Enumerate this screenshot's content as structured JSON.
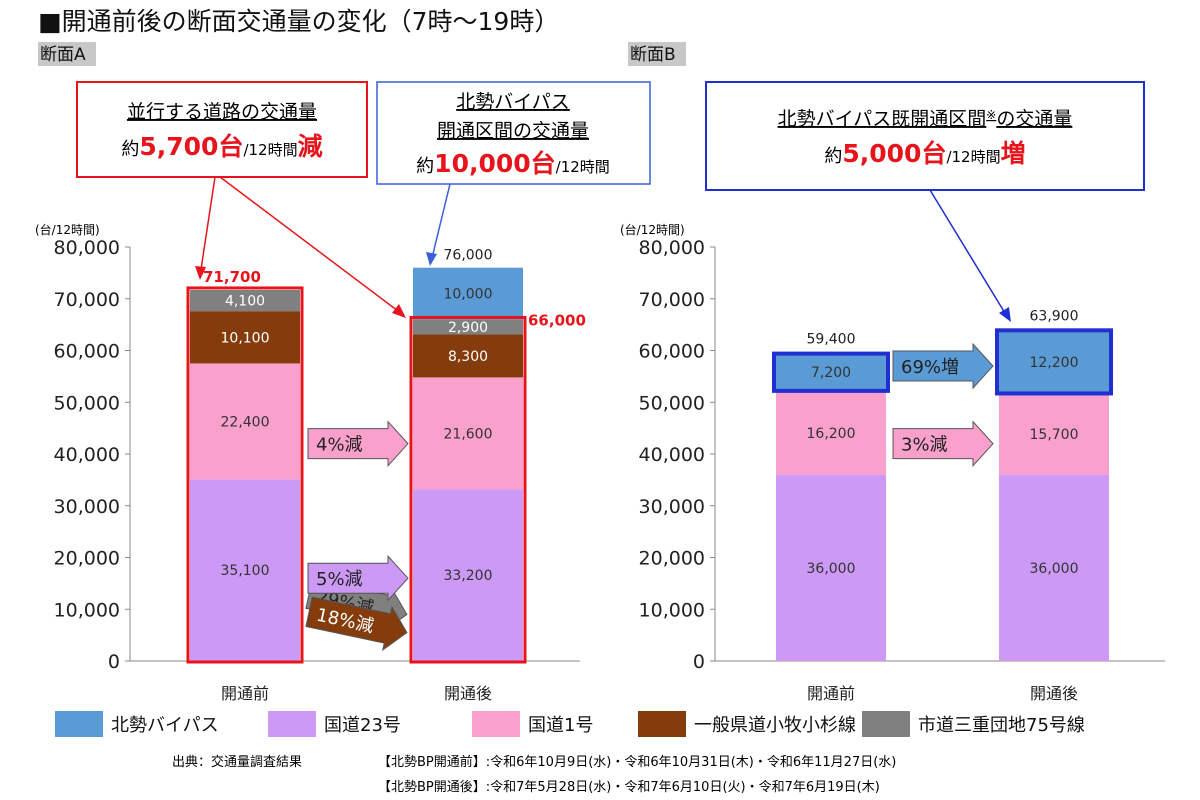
{
  "title": "■開通前後の断面交通量の変化（7時〜19時）",
  "colors": {
    "bypass": "#5b9bd5",
    "route23": "#cc99f5",
    "route1": "#f9a0cc",
    "pref_road": "#843c0c",
    "city_road": "#808080",
    "red": "#e8141b",
    "blue": "#1f2fd0"
  },
  "callouts": {
    "a_parallel": {
      "line1": "並行する道路の交通量",
      "prefix": "約",
      "value": "5,700台",
      "unit": "/12時間",
      "suffix": "減"
    },
    "a_bypass": {
      "line1": "北勢バイパス",
      "line2": "開通区間の交通量",
      "prefix": "約",
      "value": "10,000台",
      "unit": "/12時間"
    },
    "b_bypass": {
      "line1": "北勢バイパス既開通区間",
      "note": "※",
      "line1b": "の交通量",
      "prefix": "約",
      "value": "5,000台",
      "unit": "/12時間",
      "suffix": "増"
    }
  },
  "legend": [
    "北勢バイパス",
    "国道23号",
    "国道1号",
    "一般県道小牧小杉線",
    "市道三重団地75号線"
  ],
  "source": {
    "label": "出典：交通量調査結果",
    "before": "【北勢BP開通前】:令和6年10月9日(水)・令和6年10月31日(木)・令和6年11月27日(水)",
    "after": "【北勢BP開通後】:令和7年5月28日(水)・令和7年6月10日(火)・令和7年6月19日(木)"
  },
  "chart_data": [
    {
      "type": "bar",
      "stacked": true,
      "title": "断面A",
      "ylabel": "(台/12時間)",
      "ylim": [
        0,
        80000
      ],
      "yticks": [
        "0",
        "10,000",
        "20,000",
        "30,000",
        "40,000",
        "50,000",
        "60,000",
        "70,000",
        "80,000"
      ],
      "categories": [
        "開通前",
        "開通後"
      ],
      "series": [
        {
          "name": "国道23号",
          "key": "route23",
          "values": [
            35100,
            33200
          ],
          "labels": [
            "35,100",
            "33,200"
          ]
        },
        {
          "name": "国道1号",
          "key": "route1",
          "values": [
            22400,
            21600
          ],
          "labels": [
            "22,400",
            "21,600"
          ]
        },
        {
          "name": "一般県道小牧小杉線",
          "key": "pref_road",
          "values": [
            10100,
            8300
          ],
          "labels": [
            "10,100",
            "8,300"
          ]
        },
        {
          "name": "市道三重団地75号線",
          "key": "city_road",
          "values": [
            4100,
            2900
          ],
          "labels": [
            "4,100",
            "2,900"
          ]
        },
        {
          "name": "北勢バイパス",
          "key": "bypass",
          "values": [
            0,
            10000
          ],
          "labels": [
            "",
            "10,000"
          ]
        }
      ],
      "totals": [
        "71,700",
        "76,000"
      ],
      "parallel_total_after": "66,000",
      "changes": [
        {
          "label": "29%減",
          "key": "city_road",
          "value": 11000
        },
        {
          "label": "18%減",
          "key": "pref_road",
          "value": 7500
        },
        {
          "label": "4%減",
          "key": "route1",
          "value": 42000
        },
        {
          "label": "5%減",
          "key": "route23",
          "value": 16000
        }
      ]
    },
    {
      "type": "bar",
      "stacked": true,
      "title": "断面B",
      "ylabel": "(台/12時間)",
      "ylim": [
        0,
        80000
      ],
      "yticks": [
        "0",
        "10,000",
        "20,000",
        "30,000",
        "40,000",
        "50,000",
        "60,000",
        "70,000",
        "80,000"
      ],
      "categories": [
        "開通前",
        "開通後"
      ],
      "series": [
        {
          "name": "国道23号",
          "key": "route23",
          "values": [
            36000,
            36000
          ],
          "labels": [
            "36,000",
            "36,000"
          ]
        },
        {
          "name": "国道1号",
          "key": "route1",
          "values": [
            16200,
            15700
          ],
          "labels": [
            "16,200",
            "15,700"
          ]
        },
        {
          "name": "北勢バイパス",
          "key": "bypass",
          "values": [
            7200,
            12200
          ],
          "labels": [
            "7,200",
            "12,200"
          ]
        }
      ],
      "totals": [
        "59,400",
        "63,900"
      ],
      "changes": [
        {
          "label": "69%増",
          "key": "bypass",
          "value": 57000
        },
        {
          "label": "3%減",
          "key": "route1",
          "value": 42000
        }
      ]
    }
  ]
}
